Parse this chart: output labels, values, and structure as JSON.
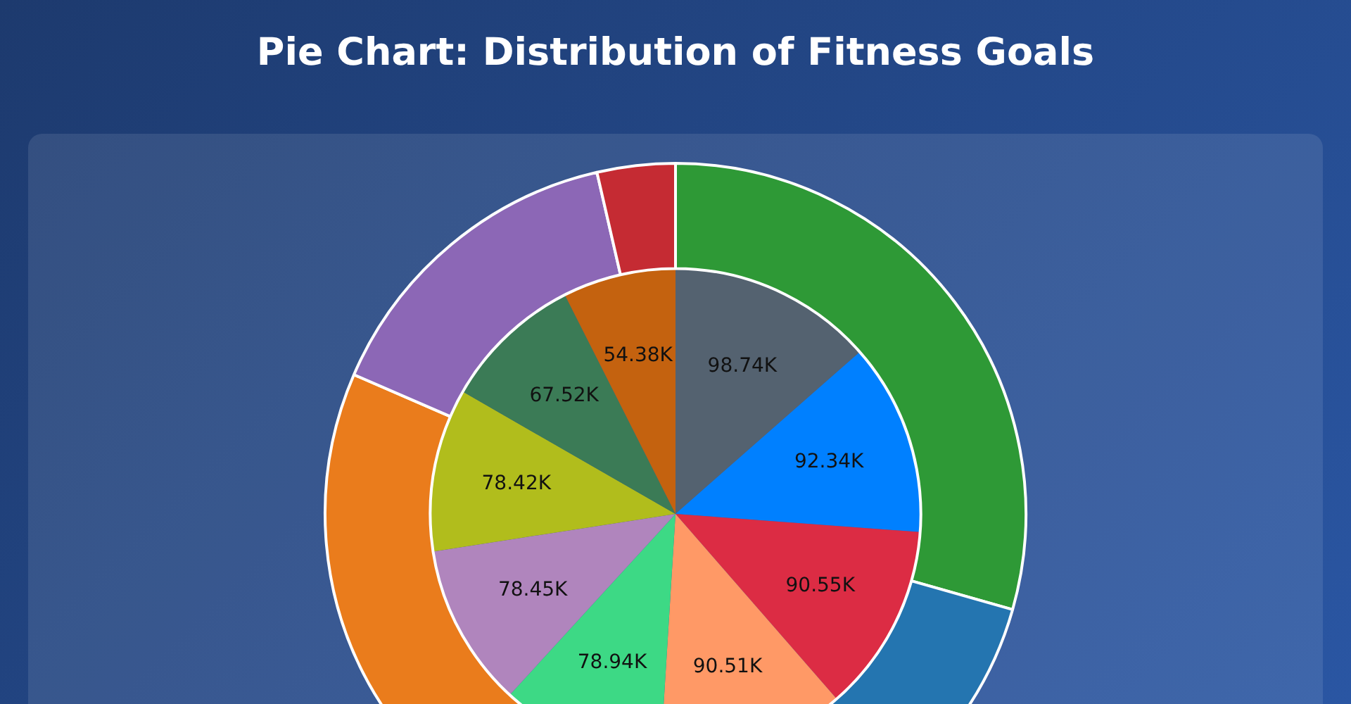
{
  "chart_data": {
    "type": "pie",
    "title": "Pie Chart: Distribution of Fitness Goals",
    "legend": false,
    "series": [
      {
        "type": "donut",
        "values": [
          29.4,
          20.6,
          31.5,
          14.9,
          3.6
        ],
        "colors": [
          "#2e9936",
          "#2475b0",
          "#ea7c1c",
          "#8c67b6",
          "#c52b33"
        ]
      },
      {
        "type": "pie",
        "values": [
          98740,
          92340,
          90550,
          90510,
          78940,
          78450,
          78420,
          67520,
          54380
        ],
        "value_labels": [
          "98.74K",
          "92.34K",
          "90.55K",
          "90.51K",
          "78.94K",
          "78.45K",
          "78.42K",
          "67.52K",
          "54.38K"
        ],
        "colors": [
          "#546270",
          "#0080ff",
          "#dc2c44",
          "#ff9966",
          "#3dd985",
          "#b085bd",
          "#b1bd1c",
          "#3b7b56",
          "#c4620f"
        ]
      }
    ]
  }
}
